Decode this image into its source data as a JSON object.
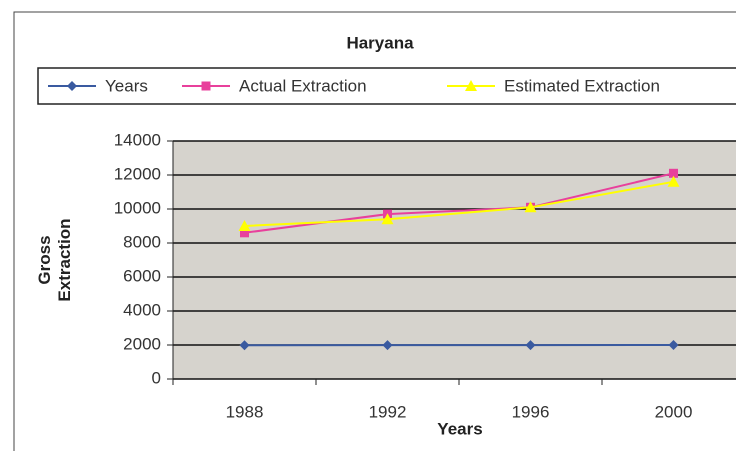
{
  "chart_data": {
    "type": "line",
    "title": "Haryana",
    "x_label": "Years",
    "y_label": "Gross Extraction",
    "categories": [
      "1988",
      "1992",
      "1996",
      "2000"
    ],
    "series": [
      {
        "name": "Years",
        "color": "#3a5aa0",
        "marker": "diamond",
        "values": [
          1988,
          1992,
          1996,
          2000
        ]
      },
      {
        "name": "Actual Extraction",
        "color": "#e8409c",
        "marker": "square",
        "values": [
          8600,
          9700,
          10100,
          12100
        ]
      },
      {
        "name": "Estimated Extraction",
        "color": "#ffff00",
        "marker": "triangle",
        "values": [
          9000,
          9400,
          10100,
          11600
        ]
      }
    ],
    "ylim": [
      0,
      14000
    ],
    "yticks": [
      0,
      2000,
      4000,
      6000,
      8000,
      10000,
      12000,
      14000
    ],
    "grid": true,
    "legend": "top"
  }
}
